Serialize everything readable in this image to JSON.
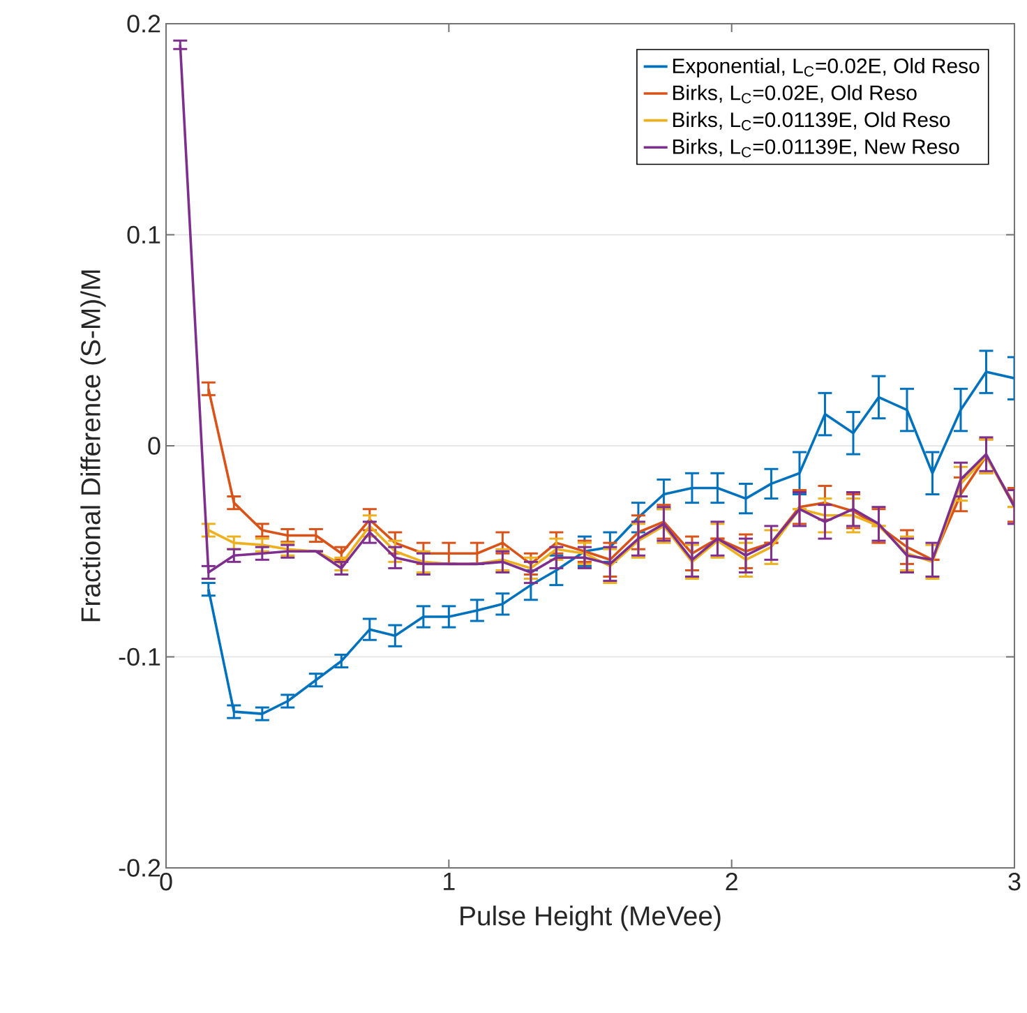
{
  "chart_data": {
    "type": "line",
    "xlabel": "Pulse Height (MeVee)",
    "ylabel": "Fractional Difference (S-M)/M",
    "x": [
      0.05,
      0.15,
      0.24,
      0.34,
      0.43,
      0.53,
      0.62,
      0.72,
      0.81,
      0.91,
      1.0,
      1.1,
      1.19,
      1.29,
      1.38,
      1.48,
      1.57,
      1.67,
      1.76,
      1.86,
      1.95,
      2.05,
      2.14,
      2.24,
      2.33,
      2.43,
      2.52,
      2.62,
      2.71,
      2.81,
      2.9,
      3.0
    ],
    "series": [
      {
        "name": "Exponential, L$_{C}$=0.02E, Old Reso",
        "color": "#0072bd",
        "values": [
          null,
          -0.068,
          -0.126,
          -0.127,
          -0.121,
          -0.111,
          -0.102,
          -0.087,
          -0.09,
          -0.081,
          -0.081,
          -0.078,
          -0.075,
          -0.066,
          -0.059,
          -0.05,
          -0.048,
          -0.034,
          -0.023,
          -0.02,
          -0.02,
          -0.025,
          -0.018,
          -0.013,
          0.015,
          0.006,
          0.023,
          0.017,
          -0.013,
          0.017,
          0.035,
          0.032
        ],
        "errors": [
          null,
          0.003,
          0.003,
          0.003,
          0.003,
          0.003,
          0.003,
          0.005,
          0.005,
          0.005,
          0.005,
          0.005,
          0.005,
          0.007,
          0.007,
          0.007,
          0.007,
          0.007,
          0.007,
          0.007,
          0.007,
          0.007,
          0.007,
          0.01,
          0.01,
          0.01,
          0.01,
          0.01,
          0.01,
          0.01,
          0.01,
          0.01
        ]
      },
      {
        "name": "Birks, L$_{C}$=0.02E, Old Reso",
        "color": "#d95319",
        "values": [
          null,
          0.027,
          -0.027,
          -0.04,
          -0.0425,
          -0.0425,
          -0.051,
          -0.035,
          -0.046,
          -0.051,
          -0.051,
          -0.051,
          -0.046,
          -0.056,
          -0.046,
          -0.05,
          -0.054,
          -0.041,
          -0.036,
          -0.051,
          -0.044,
          -0.05,
          -0.046,
          -0.029,
          -0.027,
          -0.031,
          -0.038,
          -0.048,
          -0.054,
          -0.023,
          -0.005,
          -0.028
        ],
        "errors": [
          null,
          0.003,
          0.003,
          0.003,
          0.003,
          0.003,
          0.003,
          0.005,
          0.005,
          0.005,
          0.005,
          0.005,
          0.005,
          0.005,
          0.005,
          0.005,
          0.008,
          0.008,
          0.008,
          0.008,
          null,
          0.008,
          null,
          0.008,
          0.008,
          0.008,
          0.008,
          0.008,
          null,
          0.008,
          0.008,
          0.008
        ]
      },
      {
        "name": "Birks, L$_{C}$=0.01139E, Old Reso",
        "color": "#edb120",
        "values": [
          null,
          -0.04,
          -0.046,
          -0.047,
          -0.049,
          -0.05,
          -0.056,
          -0.038,
          -0.05,
          -0.055,
          -0.056,
          -0.056,
          -0.054,
          -0.058,
          -0.049,
          -0.051,
          -0.057,
          -0.045,
          -0.038,
          -0.055,
          -0.045,
          -0.054,
          -0.048,
          -0.03,
          -0.033,
          -0.033,
          -0.038,
          -0.051,
          -0.055,
          -0.018,
          -0.005,
          -0.029
        ],
        "errors": [
          null,
          0.003,
          0.003,
          0.003,
          0.003,
          null,
          0.003,
          0.005,
          0.005,
          0.005,
          null,
          null,
          0.005,
          0.005,
          0.005,
          0.005,
          0.008,
          0.008,
          0.008,
          0.008,
          0.008,
          0.008,
          0.008,
          null,
          0.008,
          0.008,
          null,
          0.008,
          0.008,
          0.008,
          0.008,
          null
        ]
      },
      {
        "name": "Birks, L$_{C}$=0.01139E, New Reso",
        "color": "#7e2f8e",
        "values": [
          0.19,
          -0.06,
          -0.052,
          -0.051,
          -0.05,
          -0.05,
          -0.058,
          -0.041,
          -0.053,
          -0.056,
          -0.056,
          -0.056,
          -0.055,
          -0.06,
          -0.053,
          -0.053,
          -0.056,
          -0.044,
          -0.037,
          -0.054,
          -0.044,
          -0.052,
          -0.046,
          -0.03,
          -0.036,
          -0.03,
          -0.037,
          -0.052,
          -0.054,
          -0.016,
          -0.004,
          -0.029
        ],
        "errors": [
          0.002,
          0.003,
          0.003,
          0.003,
          0.003,
          null,
          0.003,
          0.005,
          0.005,
          0.005,
          null,
          null,
          0.005,
          0.005,
          0.005,
          0.005,
          0.008,
          0.008,
          0.008,
          0.008,
          0.008,
          0.008,
          0.008,
          0.008,
          0.008,
          0.008,
          0.008,
          0.008,
          0.008,
          0.008,
          0.008,
          0.008
        ]
      }
    ],
    "xlim": [
      0,
      3
    ],
    "ylim": [
      -0.2,
      0.2
    ],
    "xticks": [
      0,
      1,
      2,
      3
    ],
    "yticks": [
      -0.2,
      -0.1,
      0,
      0.1,
      0.2
    ],
    "grid": "y",
    "legend": "top right",
    "marker": "none",
    "line_style": "solid"
  }
}
